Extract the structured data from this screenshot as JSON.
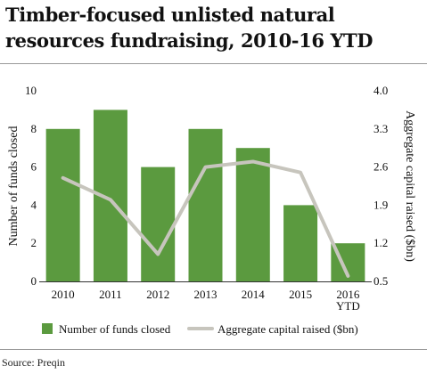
{
  "title": "Timber-focused unlisted natural resources fundraising, 2010-16 YTD",
  "source": "Source: Preqin",
  "chart_data": {
    "type": "bar",
    "categories": [
      "2010",
      "2011",
      "2012",
      "2013",
      "2014",
      "2015",
      "2016\nYTD"
    ],
    "series": [
      {
        "name": "Number of funds closed",
        "type": "bar",
        "axis": "left",
        "color": "#5b9a3f",
        "values": [
          8,
          9,
          6,
          8,
          7,
          4,
          2
        ]
      },
      {
        "name": "Aggregate capital raised ($bn)",
        "type": "line",
        "axis": "right",
        "color": "#c7c5bd",
        "values": [
          2.4,
          2.0,
          1.0,
          2.6,
          2.7,
          2.5,
          0.6
        ]
      }
    ],
    "ylabel": "Number of funds closed",
    "ylim": [
      0,
      10
    ],
    "yticks": [
      "0",
      "2",
      "4",
      "6",
      "8",
      "10"
    ],
    "y2label": "Aggregate capital raised ($bn)",
    "y2lim": [
      0.5,
      4.0
    ],
    "y2ticks": [
      "0.5",
      "1.2",
      "1.9",
      "2.6",
      "3.3",
      "4.0"
    ],
    "grid": false,
    "legend": "bottom"
  }
}
